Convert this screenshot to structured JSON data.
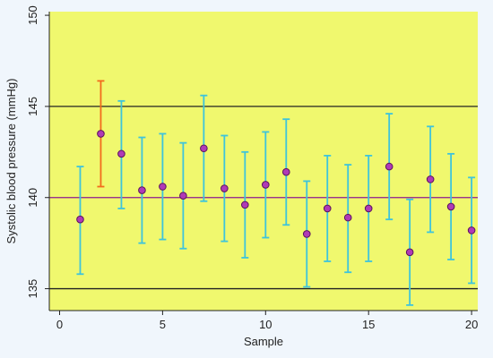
{
  "chart_data": {
    "type": "scatter",
    "title": "",
    "xlabel": "Sample",
    "ylabel": "Systolic blood pressure (mmHg)",
    "xlim": [
      -0.5,
      20.3
    ],
    "ylim": [
      133.8,
      150.2
    ],
    "xticks": [
      0,
      5,
      10,
      15,
      20
    ],
    "yticks": [
      135,
      140,
      145,
      150
    ],
    "reference_lines": [
      {
        "y": 145,
        "color": "#222222"
      },
      {
        "y": 140,
        "color": "#8e1a8e"
      },
      {
        "y": 135,
        "color": "#222222"
      }
    ],
    "points": [
      {
        "x": 1,
        "y": 138.8,
        "low": 135.8,
        "high": 141.7
      },
      {
        "x": 2,
        "y": 143.5,
        "low": 140.6,
        "high": 146.4
      },
      {
        "x": 3,
        "y": 142.4,
        "low": 139.4,
        "high": 145.3
      },
      {
        "x": 4,
        "y": 140.4,
        "low": 137.5,
        "high": 143.3
      },
      {
        "x": 5,
        "y": 140.6,
        "low": 137.7,
        "high": 143.5
      },
      {
        "x": 6,
        "y": 140.1,
        "low": 137.2,
        "high": 143.0
      },
      {
        "x": 7,
        "y": 142.7,
        "low": 139.8,
        "high": 145.6
      },
      {
        "x": 8,
        "y": 140.5,
        "low": 137.6,
        "high": 143.4
      },
      {
        "x": 9,
        "y": 139.6,
        "low": 136.7,
        "high": 142.5
      },
      {
        "x": 10,
        "y": 140.7,
        "low": 137.8,
        "high": 143.6
      },
      {
        "x": 11,
        "y": 141.4,
        "low": 138.5,
        "high": 144.3
      },
      {
        "x": 12,
        "y": 138.0,
        "low": 135.1,
        "high": 140.9
      },
      {
        "x": 13,
        "y": 139.4,
        "low": 136.5,
        "high": 142.3
      },
      {
        "x": 14,
        "y": 138.9,
        "low": 135.9,
        "high": 141.8
      },
      {
        "x": 15,
        "y": 139.4,
        "low": 136.5,
        "high": 142.3
      },
      {
        "x": 16,
        "y": 141.7,
        "low": 138.8,
        "high": 144.6
      },
      {
        "x": 17,
        "y": 137.0,
        "low": 134.1,
        "high": 139.9
      },
      {
        "x": 18,
        "y": 141.0,
        "low": 138.1,
        "high": 143.9
      },
      {
        "x": 19,
        "y": 139.5,
        "low": 136.6,
        "high": 142.4
      },
      {
        "x": 20,
        "y": 138.2,
        "low": 135.3,
        "high": 141.1
      }
    ],
    "highlighted_x": [
      2
    ],
    "colors": {
      "plot_background": "#f0f86e",
      "page_background": "#f0f6fc",
      "errorbar": "#3ec4dc",
      "errorbar_highlight": "#f26b1d",
      "marker_fill": "#b03ab6",
      "marker_stroke": "#5a125c",
      "axis": "#222222"
    },
    "grid": false,
    "legend": "none"
  }
}
